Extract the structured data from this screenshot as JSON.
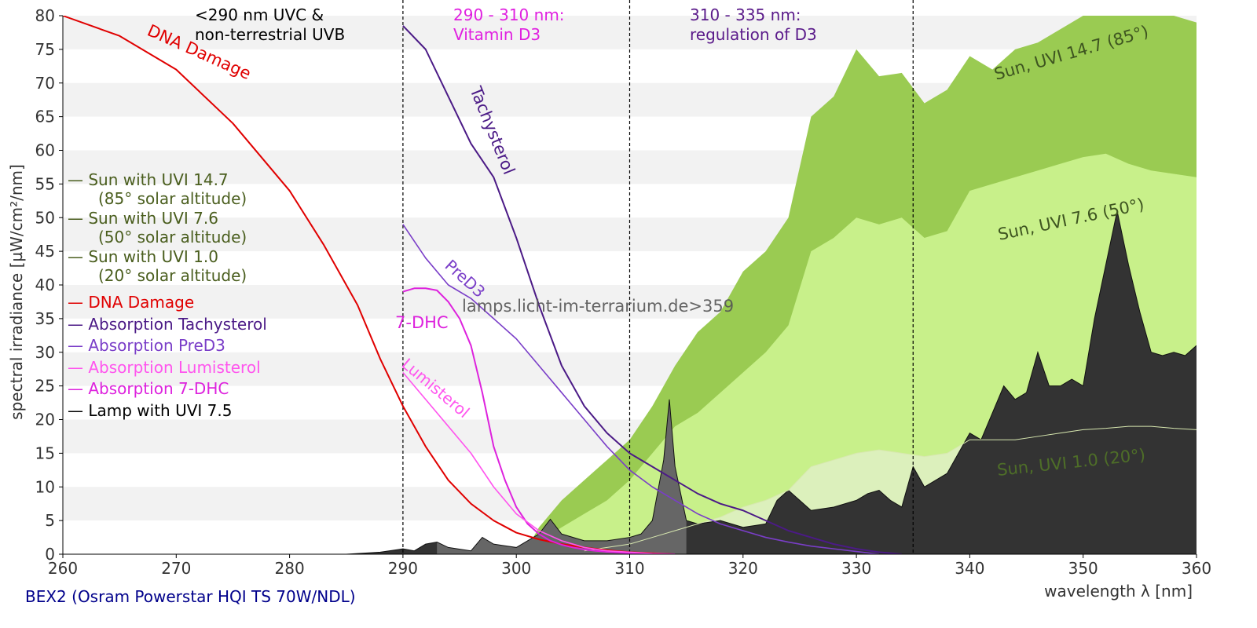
{
  "chart_data": {
    "type": "area",
    "xlabel": "wavelength λ [nm]",
    "ylabel": "spectral irradiance [µW/cm²/nm]",
    "xlim": [
      260,
      360
    ],
    "ylim": [
      0,
      80
    ],
    "xticks": [
      260,
      270,
      280,
      290,
      300,
      310,
      320,
      330,
      340,
      350,
      360
    ],
    "yticks": [
      0,
      5,
      10,
      15,
      20,
      25,
      30,
      35,
      40,
      45,
      50,
      55,
      60,
      65,
      70,
      75,
      80
    ],
    "grid": "horizontal bands",
    "legend_position": "left",
    "footer": "BEX2 (Osram Powerstar HQI TS 70W/NDL)",
    "watermark": "lamps.licht-im-terrarium.de>359",
    "region_lines": [
      290,
      310,
      335
    ],
    "region_labels": [
      {
        "lines": [
          "<290 nm UVC &",
          "non-terrestrial UVB"
        ],
        "color": "#000000"
      },
      {
        "lines": [
          "290 - 310 nm:",
          "Vitamin D3"
        ],
        "color": "#e020e0"
      },
      {
        "lines": [
          "310 - 335 nm:",
          "regulation of D3"
        ],
        "color": "#5a1a8a"
      }
    ],
    "legend": [
      {
        "lines": [
          "— Sun with UVI 14.7",
          "(85° solar altitude)"
        ],
        "color": "#4a5e1e"
      },
      {
        "lines": [
          "— Sun with UVI 7.6",
          "(50° solar altitude)"
        ],
        "color": "#4a5e1e"
      },
      {
        "lines": [
          "— Sun with UVI 1.0",
          "(20° solar altitude)"
        ],
        "color": "#4a5e1e"
      },
      {
        "lines": [
          "— DNA Damage"
        ],
        "color": "#e00000"
      },
      {
        "lines": [
          "— Absorption Tachysterol"
        ],
        "color": "#4b1a86"
      },
      {
        "lines": [
          "— Absorption PreD3"
        ],
        "color": "#7a3ec8"
      },
      {
        "lines": [
          "— Absorption Lumisterol"
        ],
        "color": "#ff55ee"
      },
      {
        "lines": [
          "— Absorption 7-DHC"
        ],
        "color": "#dd22dd"
      },
      {
        "lines": [
          "— Lamp with UVI 7.5"
        ],
        "color": "#000000"
      }
    ],
    "area_series": [
      {
        "name": "Sun, UVI 14.7 (85°)",
        "color": "#9acb52",
        "x": [
          301,
          302,
          304,
          306,
          308,
          310,
          312,
          314,
          316,
          318,
          320,
          322,
          324,
          326,
          328,
          330,
          332,
          334,
          336,
          338,
          340,
          342,
          344,
          346,
          348,
          350,
          352,
          354,
          356,
          358,
          360
        ],
        "y": [
          1,
          4,
          8,
          11,
          14,
          17,
          22,
          28,
          33,
          36,
          42,
          45,
          50,
          65,
          68,
          75,
          71,
          71.5,
          67,
          69,
          74,
          72,
          75,
          76,
          78,
          80,
          81,
          82,
          81,
          80,
          79
        ]
      },
      {
        "name": "Sun, UVI 7.6 (50°)",
        "color": "#c8f08a",
        "x": [
          300,
          302,
          304,
          306,
          308,
          310,
          312,
          314,
          316,
          318,
          320,
          322,
          324,
          326,
          328,
          330,
          332,
          334,
          336,
          338,
          340,
          342,
          344,
          346,
          348,
          350,
          352,
          354,
          356,
          358,
          360
        ],
        "y": [
          0.5,
          2,
          4,
          6,
          8,
          11,
          15,
          19,
          21,
          24,
          27,
          30,
          34,
          45,
          47,
          50,
          49,
          50,
          47,
          48,
          54,
          55,
          56,
          57,
          58,
          59,
          59.5,
          58,
          57,
          56.5,
          56
        ]
      },
      {
        "name": "Sun, UVI 1.0 (20°)",
        "color": "#dcf0bc",
        "x": [
          306,
          308,
          310,
          312,
          314,
          316,
          318,
          320,
          322,
          324,
          326,
          328,
          330,
          332,
          334,
          336,
          338,
          340,
          342,
          344,
          346,
          348,
          350,
          352,
          354,
          356,
          358,
          360
        ],
        "y": [
          0.5,
          1,
          1.5,
          2.5,
          3.5,
          4.5,
          5.5,
          7,
          8,
          9.5,
          13,
          14,
          15,
          15.5,
          15,
          14.5,
          15,
          17,
          17,
          17,
          17.5,
          18,
          18.5,
          18.7,
          19,
          19,
          18.7,
          18.5
        ]
      },
      {
        "name": "Lamp with UVI 7.5",
        "color": "#333333",
        "x": [
          260,
          270,
          280,
          285,
          288,
          290,
          291,
          292,
          293,
          294,
          296,
          297,
          298,
          300,
          302,
          303,
          304,
          306,
          308,
          310,
          311,
          312,
          313,
          313.5,
          314,
          315,
          316,
          318,
          320,
          322,
          323,
          324,
          325,
          326,
          328,
          330,
          331,
          332,
          333,
          334,
          335,
          336,
          338,
          340,
          341,
          342,
          343,
          344,
          345,
          346,
          347,
          348,
          349,
          350,
          351,
          352,
          353,
          354,
          355,
          356,
          357,
          358,
          359,
          360
        ],
        "y": [
          0,
          0,
          0,
          0,
          0.3,
          0.8,
          0.5,
          1.5,
          1.8,
          1,
          0.5,
          2.5,
          1.5,
          1,
          3,
          5.2,
          3,
          2,
          2,
          2.5,
          3,
          5,
          14,
          23,
          13,
          5,
          4.5,
          5,
          4,
          4.5,
          8,
          9.5,
          8,
          6.5,
          7,
          8,
          9,
          9.5,
          8,
          7,
          13,
          10,
          12,
          18,
          17,
          21,
          25,
          23,
          24,
          30,
          25,
          25,
          26,
          25,
          35,
          43,
          51,
          43,
          36,
          30,
          29.5,
          30,
          29.5,
          31
        ]
      }
    ],
    "curve_series": [
      {
        "name": "DNA Damage",
        "color": "#e00000",
        "width": 2,
        "x": [
          260,
          265,
          270,
          275,
          280,
          283,
          286,
          288,
          290,
          292,
          294,
          296,
          298,
          300,
          302,
          304,
          306,
          308,
          310,
          312,
          314
        ],
        "y": [
          80,
          77,
          72,
          64,
          54,
          46,
          37,
          29,
          22,
          16,
          11,
          7.5,
          5,
          3.2,
          2.2,
          1.5,
          1,
          0.6,
          0.3,
          0.15,
          0
        ]
      },
      {
        "name": "Tachysterol",
        "color": "#4b1a86",
        "width": 2,
        "x": [
          290,
          292,
          294,
          296,
          298,
          300,
          302,
          304,
          306,
          308,
          310,
          312,
          314,
          316,
          318,
          320,
          322,
          324,
          326,
          328,
          330,
          332,
          334
        ],
        "y": [
          78.5,
          75,
          68,
          61,
          56,
          47,
          37,
          28,
          22,
          18,
          15,
          13,
          11,
          9,
          7.5,
          6.5,
          5,
          3.5,
          2.5,
          1.5,
          0.8,
          0.3,
          0
        ]
      },
      {
        "name": "PreD3",
        "color": "#7a3ec8",
        "width": 1.6,
        "x": [
          290,
          292,
          294,
          296,
          298,
          300,
          302,
          304,
          306,
          308,
          310,
          312,
          314,
          316,
          318,
          320,
          322,
          324,
          326,
          328,
          330,
          332
        ],
        "y": [
          49,
          44,
          40,
          38,
          35,
          32,
          28,
          24,
          20,
          16,
          12.5,
          10,
          8,
          6,
          4.5,
          3.5,
          2.5,
          1.8,
          1.2,
          0.8,
          0.4,
          0
        ]
      },
      {
        "name": "7-DHC",
        "color": "#dd22dd",
        "width": 2,
        "x": [
          290,
          291,
          292,
          293,
          294,
          295,
          296,
          297,
          298,
          299,
          300,
          301,
          302,
          303,
          304,
          305,
          306,
          307,
          308,
          309,
          310,
          312,
          314
        ],
        "y": [
          39,
          39.5,
          39.5,
          39.2,
          37.5,
          35,
          31,
          24,
          16,
          11,
          7,
          4.5,
          3,
          2,
          1.4,
          1,
          0.7,
          0.5,
          0.35,
          0.25,
          0.15,
          0.05,
          0
        ]
      },
      {
        "name": "Lumisterol",
        "color": "#ff55ee",
        "width": 1.6,
        "x": [
          290,
          292,
          294,
          296,
          298,
          300,
          302,
          304,
          306,
          308,
          310,
          312,
          314
        ],
        "y": [
          27,
          23,
          19,
          15,
          10,
          6,
          3.5,
          2,
          1,
          0.5,
          0.3,
          0.1,
          0
        ]
      }
    ],
    "annotations": [
      {
        "text": "DNA Damage",
        "color": "#e00000"
      },
      {
        "text": "Tachysterol",
        "color": "#4b1a86"
      },
      {
        "text": "PreD3",
        "color": "#7a3ec8"
      },
      {
        "text": "7-DHC",
        "color": "#dd22dd"
      },
      {
        "text": "Lumisterol",
        "color": "#ff55ee"
      },
      {
        "text": "Sun, UVI 14.7 (85°)",
        "color": "#3e5520"
      },
      {
        "text": "Sun, UVI 7.6 (50°)",
        "color": "#3e5520"
      },
      {
        "text": "Sun, UVI 1.0 (20°)",
        "color": "#4e6e28"
      }
    ]
  }
}
